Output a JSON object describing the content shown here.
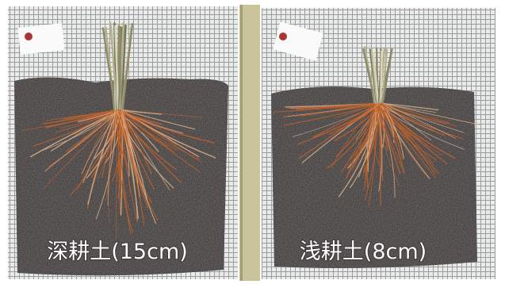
{
  "left_panel": {
    "label": "深耕土(15cm)"
  },
  "right_panel": {
    "label": "浅耕土(8cm)"
  }
}
